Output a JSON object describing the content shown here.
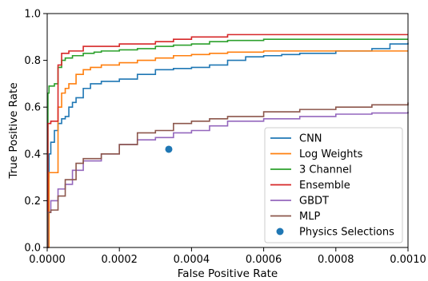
{
  "chart_data": {
    "type": "line",
    "title": "",
    "xlabel": "False Positive Rate",
    "ylabel": "True Positive Rate",
    "xlim": [
      0,
      0.001
    ],
    "ylim": [
      0,
      1.0
    ],
    "xticks": [
      "0.0000",
      "0.0002",
      "0.0004",
      "0.0006",
      "0.0008",
      "0.0010"
    ],
    "xtick_values": [
      0,
      0.0002,
      0.0004,
      0.0006,
      0.0008,
      0.001
    ],
    "yticks": [
      "0.0",
      "0.2",
      "0.4",
      "0.6",
      "0.8",
      "1.0"
    ],
    "ytick_values": [
      0,
      0.2,
      0.4,
      0.6,
      0.8,
      1.0
    ],
    "grid": false,
    "legend_position": "lower-right",
    "series": [
      {
        "name": "CNN",
        "color": "#1f77b4",
        "x": [
          0,
          1e-06,
          5e-06,
          1e-05,
          2e-05,
          3e-05,
          4e-05,
          5e-05,
          6e-05,
          7e-05,
          8e-05,
          0.0001,
          0.00012,
          0.00015,
          0.0002,
          0.00025,
          0.0003,
          0.00035,
          0.0004,
          0.00045,
          0.0005,
          0.00055,
          0.0006,
          0.00065,
          0.0007,
          0.0008,
          0.0009,
          0.00095,
          0.001
        ],
        "y": [
          0,
          0.3,
          0.4,
          0.45,
          0.5,
          0.53,
          0.55,
          0.56,
          0.6,
          0.62,
          0.64,
          0.68,
          0.7,
          0.71,
          0.72,
          0.74,
          0.76,
          0.765,
          0.77,
          0.78,
          0.8,
          0.815,
          0.82,
          0.825,
          0.83,
          0.84,
          0.85,
          0.87,
          0.875
        ]
      },
      {
        "name": "Log Weights",
        "color": "#ff7f0e",
        "x": [
          0,
          5e-06,
          1e-05,
          2e-05,
          3e-05,
          4e-05,
          5e-05,
          6e-05,
          8e-05,
          0.0001,
          0.00012,
          0.00015,
          0.0002,
          0.00025,
          0.0003,
          0.00035,
          0.0004,
          0.00045,
          0.0005,
          0.0006,
          0.0008,
          0.001
        ],
        "y": [
          0,
          0.32,
          0.32,
          0.32,
          0.6,
          0.66,
          0.68,
          0.7,
          0.74,
          0.76,
          0.77,
          0.78,
          0.79,
          0.8,
          0.81,
          0.82,
          0.825,
          0.83,
          0.835,
          0.84,
          0.84,
          0.84
        ]
      },
      {
        "name": "3 Channel",
        "color": "#2ca02c",
        "x": [
          0,
          2e-06,
          5e-06,
          2e-05,
          3e-05,
          4e-05,
          5e-05,
          7e-05,
          0.0001,
          0.00013,
          0.00015,
          0.0002,
          0.00025,
          0.0003,
          0.00035,
          0.0004,
          0.00045,
          0.0005,
          0.0006,
          0.0008,
          0.001
        ],
        "y": [
          0,
          0.66,
          0.69,
          0.7,
          0.77,
          0.8,
          0.81,
          0.82,
          0.83,
          0.835,
          0.84,
          0.845,
          0.85,
          0.86,
          0.865,
          0.87,
          0.88,
          0.885,
          0.89,
          0.89,
          0.89
        ]
      },
      {
        "name": "Ensemble",
        "color": "#d62728",
        "x": [
          0,
          2e-06,
          1e-05,
          3e-05,
          4e-05,
          6e-05,
          0.0001,
          0.0002,
          0.0003,
          0.00035,
          0.0004,
          0.0005,
          0.0006,
          0.0008,
          0.001
        ],
        "y": [
          0,
          0.53,
          0.54,
          0.78,
          0.83,
          0.84,
          0.86,
          0.87,
          0.88,
          0.89,
          0.9,
          0.91,
          0.91,
          0.91,
          0.91
        ]
      },
      {
        "name": "GBDT",
        "color": "#9467bd",
        "x": [
          0,
          2e-06,
          1e-05,
          3e-05,
          5e-05,
          7e-05,
          0.0001,
          0.00015,
          0.0002,
          0.00025,
          0.0003,
          0.00035,
          0.0004,
          0.00045,
          0.0005,
          0.0006,
          0.0007,
          0.0008,
          0.0009,
          0.001
        ],
        "y": [
          0,
          0.15,
          0.2,
          0.25,
          0.27,
          0.33,
          0.37,
          0.4,
          0.44,
          0.46,
          0.47,
          0.49,
          0.5,
          0.52,
          0.54,
          0.55,
          0.56,
          0.57,
          0.575,
          0.58
        ]
      },
      {
        "name": "MLP",
        "color": "#8c564b",
        "x": [
          0,
          2e-06,
          1e-05,
          3e-05,
          5e-05,
          8e-05,
          0.0001,
          0.00015,
          0.0002,
          0.00025,
          0.0003,
          0.00035,
          0.0004,
          0.00045,
          0.0005,
          0.0006,
          0.0007,
          0.0008,
          0.0009,
          0.001
        ],
        "y": [
          0,
          0.15,
          0.16,
          0.22,
          0.29,
          0.36,
          0.38,
          0.4,
          0.44,
          0.49,
          0.5,
          0.53,
          0.54,
          0.55,
          0.56,
          0.58,
          0.59,
          0.6,
          0.61,
          0.62
        ]
      },
      {
        "name": "Physics Selections",
        "color": "#1f77b4",
        "marker": "point",
        "x": [
          0.000337
        ],
        "y": [
          0.42
        ]
      }
    ]
  }
}
